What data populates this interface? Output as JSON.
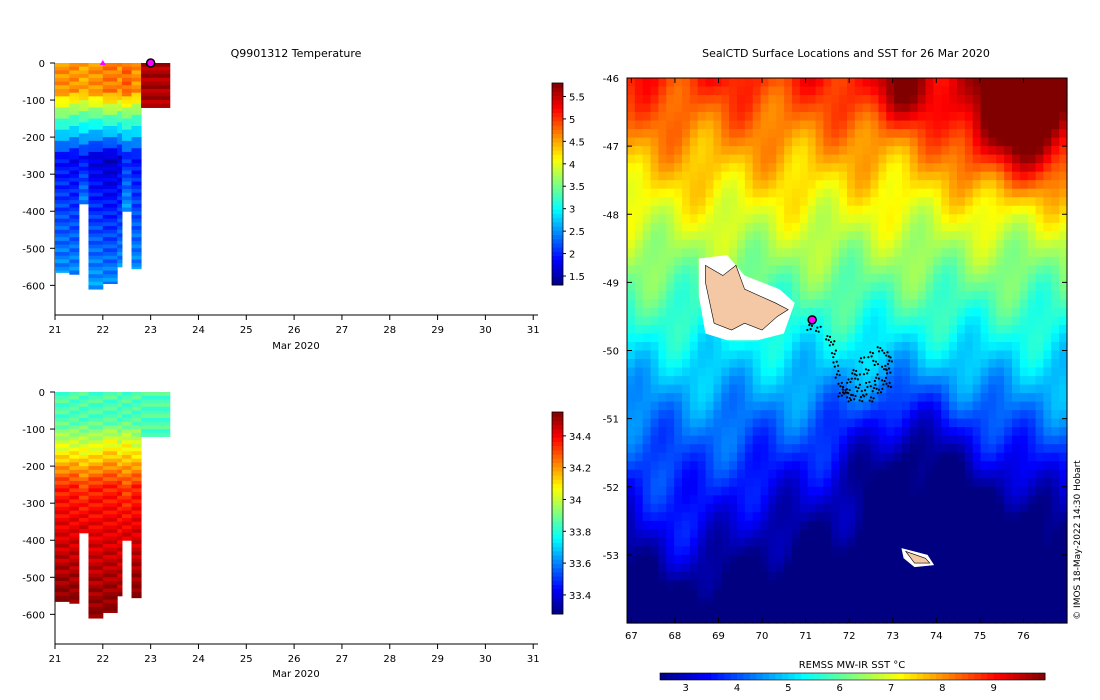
{
  "chart_data": [
    {
      "id": "temperature",
      "type": "heatmap",
      "title": "Q9901312  Temperature",
      "xlabel": "Mar 2020",
      "x_ticks": [
        21,
        22,
        23,
        24,
        25,
        26,
        27,
        28,
        29,
        30,
        31
      ],
      "xlim": [
        21,
        31.1
      ],
      "ylim": [
        -680,
        0
      ],
      "y_ticks": [
        0,
        -100,
        -200,
        -300,
        -400,
        -500,
        -600
      ],
      "colorbar_ticks": [
        1.5,
        2,
        2.5,
        3,
        3.5,
        4,
        4.5,
        5,
        5.5
      ],
      "colorbar_range": [
        1.3,
        5.8
      ],
      "profiles": [
        {
          "time": 21.0,
          "depth": 565,
          "surface": 4.6,
          "thermocline": 3.6,
          "deep": 1.9,
          "bottom": 2.5
        },
        {
          "time": 21.3,
          "depth": 570,
          "surface": 4.6,
          "thermocline": 3.5,
          "deep": 1.8,
          "bottom": 2.5
        },
        {
          "time": 21.5,
          "depth": 380,
          "surface": 4.5,
          "thermocline": 3.5,
          "deep": 1.9,
          "bottom": 2.5
        },
        {
          "time": 21.7,
          "depth": 610,
          "surface": 4.6,
          "thermocline": 3.5,
          "deep": 1.7,
          "bottom": 2.6
        },
        {
          "time": 22.0,
          "depth": 595,
          "surface": 4.7,
          "thermocline": 3.6,
          "deep": 1.6,
          "bottom": 2.5
        },
        {
          "time": 22.3,
          "depth": 550,
          "surface": 4.6,
          "thermocline": 3.5,
          "deep": 1.7,
          "bottom": 2.5
        },
        {
          "time": 22.4,
          "depth": 400,
          "surface": 4.8,
          "thermocline": 3.6,
          "deep": 2.0,
          "bottom": 2.6
        },
        {
          "time": 22.6,
          "depth": 555,
          "surface": 4.6,
          "thermocline": 3.5,
          "deep": 1.9,
          "bottom": 2.5
        },
        {
          "time": 22.8,
          "depth": 120,
          "surface": 5.6,
          "thermocline": 5.6,
          "deep": 5.6,
          "bottom": 5.6
        }
      ],
      "markers": [
        {
          "time": 22.0,
          "depth": 0,
          "symbol": "triangle",
          "color": "#ff00ff"
        },
        {
          "time": 23.0,
          "depth": 0,
          "symbol": "circle",
          "color": "#ff00ff"
        }
      ]
    },
    {
      "id": "salinity",
      "type": "heatmap",
      "title": "",
      "xlabel": "Mar 2020",
      "x_ticks": [
        21,
        22,
        23,
        24,
        25,
        26,
        27,
        28,
        29,
        30,
        31
      ],
      "xlim": [
        21,
        31.1
      ],
      "ylim": [
        -680,
        0
      ],
      "y_ticks": [
        0,
        -100,
        -200,
        -300,
        -400,
        -500,
        -600
      ],
      "colorbar_ticks": [
        33.4,
        33.6,
        33.8,
        34,
        34.2,
        34.4
      ],
      "colorbar_range": [
        33.28,
        34.55
      ],
      "profiles": [
        {
          "time": 21.0,
          "depth": 565,
          "surface": 33.85,
          "thermocline": 34.0,
          "deep": 34.35,
          "bottom": 34.55
        },
        {
          "time": 21.3,
          "depth": 570,
          "surface": 33.85,
          "thermocline": 34.0,
          "deep": 34.35,
          "bottom": 34.55
        },
        {
          "time": 21.5,
          "depth": 380,
          "surface": 33.85,
          "thermocline": 34.0,
          "deep": 34.3,
          "bottom": 34.45
        },
        {
          "time": 21.7,
          "depth": 610,
          "surface": 33.85,
          "thermocline": 34.0,
          "deep": 34.35,
          "bottom": 34.55
        },
        {
          "time": 22.0,
          "depth": 595,
          "surface": 33.85,
          "thermocline": 34.05,
          "deep": 34.35,
          "bottom": 34.55
        },
        {
          "time": 22.3,
          "depth": 550,
          "surface": 33.85,
          "thermocline": 34.0,
          "deep": 34.35,
          "bottom": 34.5
        },
        {
          "time": 22.4,
          "depth": 400,
          "surface": 33.85,
          "thermocline": 34.05,
          "deep": 34.3,
          "bottom": 34.45
        },
        {
          "time": 22.6,
          "depth": 555,
          "surface": 33.85,
          "thermocline": 34.0,
          "deep": 34.35,
          "bottom": 34.55
        },
        {
          "time": 22.8,
          "depth": 120,
          "surface": 33.85,
          "thermocline": 33.85,
          "deep": 33.85,
          "bottom": 33.85
        }
      ]
    },
    {
      "id": "sst-map",
      "type": "heatmap",
      "title": "SealCTD Surface Locations and SST for 26 Mar 2020",
      "xlim": [
        66.9,
        77.0
      ],
      "ylim": [
        -54.0,
        -46.0
      ],
      "x_ticks": [
        67,
        68,
        69,
        70,
        71,
        72,
        73,
        74,
        75,
        76
      ],
      "y_ticks": [
        -46,
        -47,
        -48,
        -49,
        -50,
        -51,
        -52,
        -53
      ],
      "colorbar_label": "REMSS MW-IR SST °C",
      "colorbar_ticks": [
        3,
        4,
        5,
        6,
        7,
        8,
        9
      ],
      "colorbar_range": [
        2.5,
        10.0
      ],
      "credit": "© IMOS 18-May-2022 14:30 Hobart",
      "track": [
        [
          71.1,
          -49.65
        ],
        [
          71.3,
          -49.7
        ],
        [
          71.5,
          -49.8
        ],
        [
          71.6,
          -49.9
        ],
        [
          71.65,
          -50.05
        ],
        [
          71.7,
          -50.2
        ],
        [
          71.75,
          -50.35
        ],
        [
          71.8,
          -50.5
        ],
        [
          71.9,
          -50.62
        ],
        [
          72.1,
          -50.68
        ],
        [
          72.3,
          -50.72
        ],
        [
          72.5,
          -50.7
        ],
        [
          72.7,
          -50.6
        ],
        [
          72.8,
          -50.45
        ],
        [
          72.9,
          -50.3
        ],
        [
          72.95,
          -50.15
        ],
        [
          72.85,
          -50.05
        ],
        [
          72.7,
          -50.0
        ],
        [
          72.5,
          -50.05
        ],
        [
          72.3,
          -50.15
        ],
        [
          72.1,
          -50.3
        ],
        [
          72.0,
          -50.45
        ],
        [
          72.2,
          -50.55
        ],
        [
          72.45,
          -50.5
        ],
        [
          72.65,
          -50.4
        ],
        [
          72.8,
          -50.25
        ],
        [
          72.6,
          -50.2
        ],
        [
          72.4,
          -50.3
        ],
        [
          72.2,
          -50.4
        ],
        [
          71.95,
          -50.58
        ],
        [
          71.8,
          -50.65
        ],
        [
          72.0,
          -50.7
        ],
        [
          72.35,
          -50.62
        ],
        [
          72.6,
          -50.55
        ],
        [
          72.9,
          -50.5
        ]
      ],
      "track_marker": [
        71.15,
        -49.55
      ],
      "track_marker_color": "#ff00ff",
      "land_color": "#f5c8a5"
    }
  ]
}
